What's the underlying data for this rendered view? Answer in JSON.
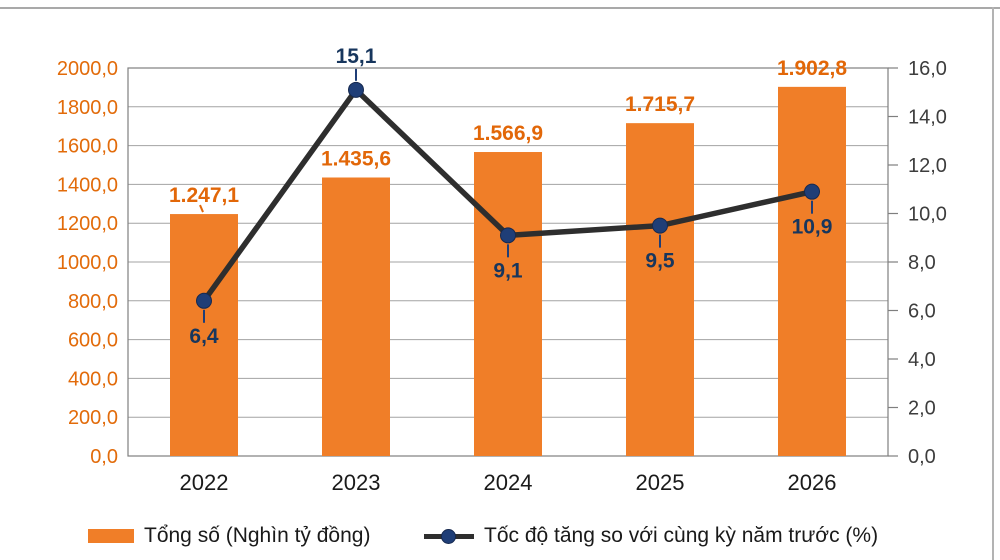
{
  "chart_data": {
    "type": "combo-bar-line",
    "categories": [
      "2022",
      "2023",
      "2024",
      "2025",
      "2026"
    ],
    "series": [
      {
        "name": "Tổng số (Nghìn tỷ đồng)",
        "type": "bar",
        "axis": "left",
        "values": [
          1247.1,
          1435.6,
          1566.9,
          1715.7,
          1902.8
        ],
        "labels": [
          "1.247,1",
          "1.435,6",
          "1.566,9",
          "1.715,7",
          "1.902,8"
        ],
        "leader_indexes": [
          0
        ],
        "color": "#F07E28",
        "label_color": "#E26708"
      },
      {
        "name": "Tốc độ tăng so với cùng kỳ năm trước (%)",
        "type": "line",
        "axis": "right",
        "values": [
          6.4,
          15.1,
          9.1,
          9.5,
          10.9
        ],
        "labels": [
          "6,4",
          "15,1",
          "9,1",
          "9,5",
          "10,9"
        ],
        "label_positions": [
          "below",
          "above",
          "below",
          "below",
          "below"
        ],
        "line_color": "#2e2e2e",
        "marker_color": "#1f3e77",
        "label_color": "#17365d"
      }
    ],
    "left_axis": {
      "min": 0,
      "max": 2000,
      "step": 200,
      "tick_labels": [
        "0,0",
        "200,0",
        "400,0",
        "600,0",
        "800,0",
        "1000,0",
        "1200,0",
        "1400,0",
        "1600,0",
        "1800,0",
        "2000,0"
      ],
      "color": "#E26B0A"
    },
    "right_axis": {
      "min": 0,
      "max": 16,
      "step": 2,
      "tick_labels": [
        "0,0",
        "2,0",
        "4,0",
        "6,0",
        "8,0",
        "10,0",
        "12,0",
        "14,0",
        "16,0"
      ],
      "color": "#3d3d3d"
    },
    "x_axis": {
      "color": "#1a1a1a"
    },
    "grid": true,
    "grid_color": "#a3a3a3",
    "border_color": "#7f7f7f",
    "legend_position": "bottom"
  },
  "legend": {
    "items": [
      {
        "label": "Tổng số (Nghìn tỷ đồng)",
        "swatch": "bar"
      },
      {
        "label": "Tốc độ tăng so với cùng kỳ năm trước (%)",
        "swatch": "line-marker"
      }
    ]
  }
}
